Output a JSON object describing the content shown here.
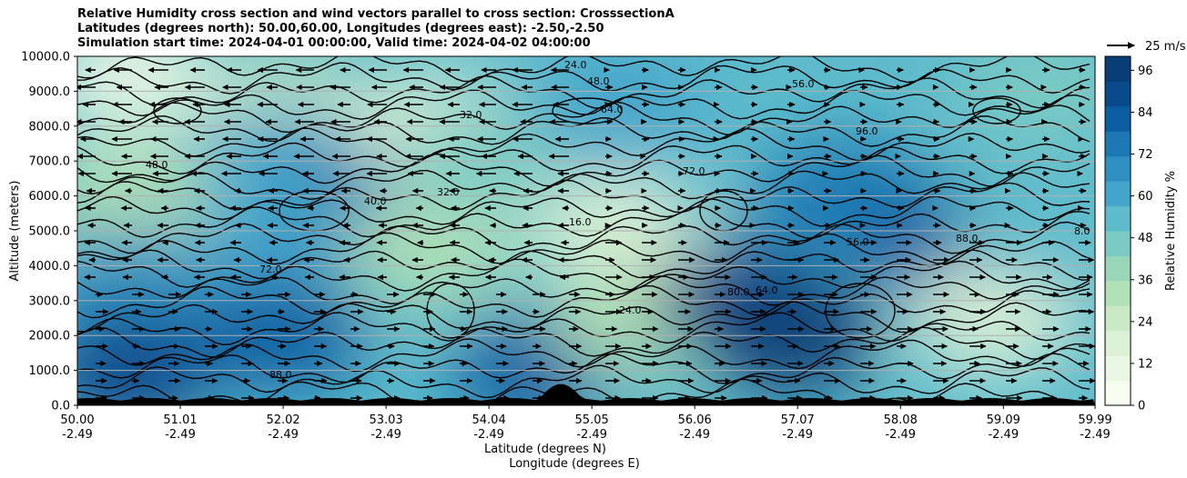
{
  "chart_data": {
    "type": "contour",
    "title_lines": [
      "Relative Humidity cross section and wind vectors parallel to cross section: CrosssectionA",
      "Latitudes (degrees north): 50.00,60.00, Longitudes (degrees east): -2.50,-2.50",
      "Simulation start time: 2024-04-01 00:00:00, Valid time: 2024-04-02 04:00:00"
    ],
    "ylabel": "Altitude (meters)",
    "xlabel_line1": "Latitude (degrees N)",
    "xlabel_line2": "Longitude (degrees E)",
    "ylim": [
      0,
      10000
    ],
    "xlim": [
      50.0,
      59.99
    ],
    "y_ticks": [
      "0.0",
      "1000.0",
      "2000.0",
      "3000.0",
      "4000.0",
      "5000.0",
      "6000.0",
      "7000.0",
      "8000.0",
      "9000.0",
      "10000.0"
    ],
    "x_ticks": [
      {
        "lat": "50.00",
        "lon": "-2.49"
      },
      {
        "lat": "51.01",
        "lon": "-2.49"
      },
      {
        "lat": "52.02",
        "lon": "-2.49"
      },
      {
        "lat": "53.03",
        "lon": "-2.49"
      },
      {
        "lat": "54.04",
        "lon": "-2.49"
      },
      {
        "lat": "55.05",
        "lon": "-2.49"
      },
      {
        "lat": "56.06",
        "lon": "-2.49"
      },
      {
        "lat": "57.07",
        "lon": "-2.49"
      },
      {
        "lat": "58.08",
        "lon": "-2.49"
      },
      {
        "lat": "59.09",
        "lon": "-2.49"
      },
      {
        "lat": "59.99",
        "lon": "-2.49"
      }
    ],
    "colorbar": {
      "label": "Relative Humidity %",
      "ticks": [
        "0",
        "12",
        "24",
        "36",
        "48",
        "60",
        "72",
        "84",
        "96"
      ],
      "range": [
        0,
        100
      ],
      "colors": [
        "#f7fcf0",
        "#e8f6e3",
        "#dbf1d5",
        "#c9eac4",
        "#b1e1b6",
        "#97d6b9",
        "#7bcbc4",
        "#5ebbcc",
        "#44a5cb",
        "#2e8fc0",
        "#1b78b3",
        "#0b5ea2",
        "#084a8c",
        "#083d75"
      ]
    },
    "quiver_key": {
      "label": "25 m/s"
    },
    "grid": true,
    "rh_points": [
      {
        "lat": 50.5,
        "alt": 9500,
        "rh": 8
      },
      {
        "lat": 50.5,
        "alt": 6000,
        "rh": 35
      },
      {
        "lat": 50.5,
        "alt": 3500,
        "rh": 68
      },
      {
        "lat": 50.5,
        "alt": 1000,
        "rh": 90
      },
      {
        "lat": 52.0,
        "alt": 8500,
        "rh": 22
      },
      {
        "lat": 52.0,
        "alt": 7000,
        "rh": 60
      },
      {
        "lat": 52.0,
        "alt": 4500,
        "rh": 60
      },
      {
        "lat": 52.0,
        "alt": 2000,
        "rh": 80
      },
      {
        "lat": 53.0,
        "alt": 6500,
        "rh": 72
      },
      {
        "lat": 53.5,
        "alt": 8000,
        "rh": 15
      },
      {
        "lat": 53.5,
        "alt": 4500,
        "rh": 30
      },
      {
        "lat": 54.0,
        "alt": 7000,
        "rh": 45
      },
      {
        "lat": 54.5,
        "alt": 1000,
        "rh": 85
      },
      {
        "lat": 55.3,
        "alt": 5000,
        "rh": 15
      },
      {
        "lat": 55.3,
        "alt": 8500,
        "rh": 60
      },
      {
        "lat": 55.5,
        "alt": 2500,
        "rh": 35
      },
      {
        "lat": 56.5,
        "alt": 3000,
        "rh": 90
      },
      {
        "lat": 57.0,
        "alt": 2000,
        "rh": 96
      },
      {
        "lat": 57.5,
        "alt": 6000,
        "rh": 75
      },
      {
        "lat": 58.5,
        "alt": 4500,
        "rh": 85
      },
      {
        "lat": 59.0,
        "alt": 2500,
        "rh": 20
      },
      {
        "lat": 59.5,
        "alt": 5000,
        "rh": 50
      },
      {
        "lat": 59.5,
        "alt": 9000,
        "rh": 45
      }
    ],
    "contour_labels": [
      "24.0",
      "48.0",
      "56.0",
      "64.0",
      "32.0",
      "48.0",
      "88.0",
      "72.0",
      "16.0",
      "40.0",
      "96.0",
      "80.0",
      "64.0",
      "24.0",
      "32.0",
      "72.0",
      "56.0",
      "88.0",
      "8.0"
    ]
  }
}
